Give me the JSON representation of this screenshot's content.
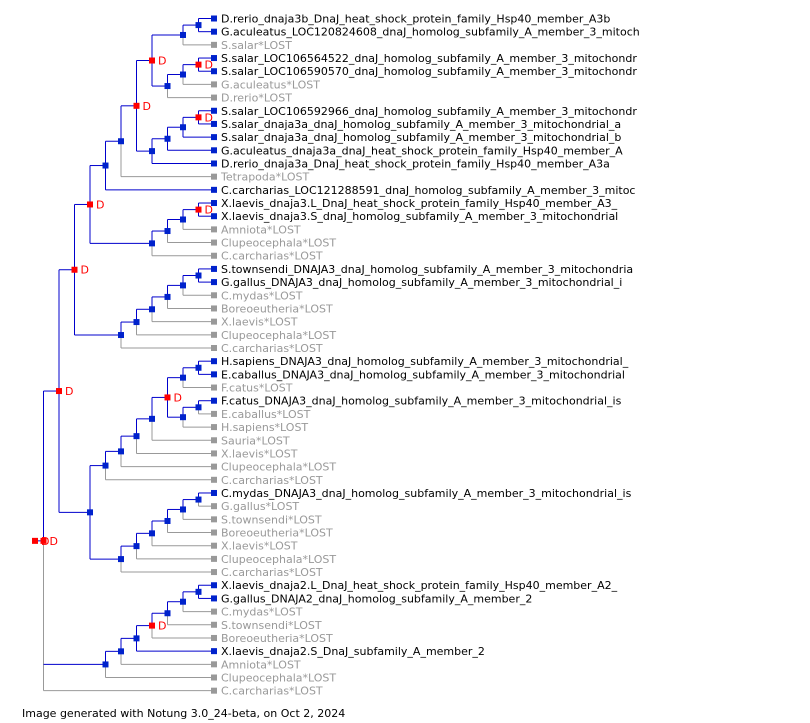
{
  "footer": "Image generated with Notung 3.0_24-beta, on Oct 2, 2024",
  "colors": {
    "branch_present": "#0000cc",
    "branch_lost": "#999999",
    "node_speciation": "#0022cc",
    "node_duplication": "#ff0000",
    "text_present": "#000000",
    "text_lost": "#999999",
    "duplication_label": "#ff0000"
  },
  "duplication_marker": "D",
  "tree": {
    "children": [
      {
        "dup": true,
        "children": [
          {
            "dup": true,
            "children": [
              {
                "dup": true,
                "children": [
                  {
                    "dup": true,
                    "children": [
                      {
                        "children": [
                          {
                            "children": [
                              {
                                "dup": true,
                                "children": [
                                  {
                                    "dup": true,
                                    "children": [
                                      {
                                        "children": [
                                          {
                                            "children": [
                                              {
                                                "label": "D.rerio_dnaja3b_DnaJ_heat_shock_protein_family_Hsp40_member_A3b"
                                              },
                                              {
                                                "label": "G.aculeatus_LOC120824608_dnaJ_homolog_subfamily_A_member_3_mitoch"
                                              }
                                            ]
                                          },
                                          {
                                            "label": "S.salar*LOST",
                                            "lost": true
                                          }
                                        ]
                                      },
                                      {
                                        "children": [
                                          {
                                            "children": [
                                              {
                                                "dup": true,
                                                "children": [
                                                  {
                                                    "label": "S.salar_LOC106564522_dnaJ_homolog_subfamily_A_member_3_mitochondr"
                                                  },
                                                  {
                                                    "label": "S.salar_LOC106590570_dnaJ_homolog_subfamily_A_member_3_mitochondr"
                                                  }
                                                ]
                                              },
                                              {
                                                "label": "G.aculeatus*LOST",
                                                "lost": true
                                              }
                                            ]
                                          },
                                          {
                                            "label": "D.rerio*LOST",
                                            "lost": true
                                          }
                                        ]
                                      }
                                    ]
                                  },
                                  {
                                    "children": [
                                      {
                                        "children": [
                                          {
                                            "children": [
                                              {
                                                "dup": true,
                                                "children": [
                                                  {
                                                    "label": "S.salar_LOC106592966_dnaJ_homolog_subfamily_A_member_3_mitochondr"
                                                  },
                                                  {
                                                    "label": "S.salar_dnaja3a_dnaJ_homolog_subfamily_A_member_3_mitochondrial_a"
                                                  }
                                                ]
                                              },
                                              {
                                                "label": "S.salar_dnaja3a_dnaJ_homolog_subfamily_A_member_3_mitochondrial_b"
                                              }
                                            ]
                                          },
                                          {
                                            "label": "G.aculeatus_dnaja3a_dnaJ_heat_shock_protein_family_Hsp40_member_A"
                                          }
                                        ]
                                      },
                                      {
                                        "label": "D.rerio_dnaja3a_DnaJ_heat_shock_protein_family_Hsp40_member_A3a"
                                      }
                                    ]
                                  }
                                ]
                              },
                              {
                                "label": "Tetrapoda*LOST",
                                "lost": true
                              }
                            ]
                          },
                          {
                            "label": "C.carcharias_LOC121288591_dnaJ_homolog_subfamily_A_member_3_mitoc"
                          }
                        ]
                      },
                      {
                        "children": [
                          {
                            "children": [
                              {
                                "children": [
                                  {
                                    "dup": true,
                                    "children": [
                                      {
                                        "label": "X.laevis_dnaja3.L_DnaJ_heat_shock_protein_family_Hsp40_member_A3_"
                                      },
                                      {
                                        "label": "X.laevis_dnaja3.S_dnaJ_homolog_subfamily_A_member_3_mitochondrial"
                                      }
                                    ]
                                  },
                                  {
                                    "label": "Amniota*LOST",
                                    "lost": true
                                  }
                                ]
                              },
                              {
                                "label": "Clupeocephala*LOST",
                                "lost": true
                              }
                            ]
                          },
                          {
                            "label": "C.carcharias*LOST",
                            "lost": true
                          }
                        ]
                      }
                    ]
                  },
                  {
                    "children": [
                      {
                        "children": [
                          {
                            "children": [
                              {
                                "children": [
                                  {
                                    "children": [
                                      {
                                        "children": [
                                          {
                                            "label": "S.townsendi_DNAJA3_dnaJ_homolog_subfamily_A_member_3_mitochondria"
                                          },
                                          {
                                            "label": "G.gallus_DNAJA3_dnaJ_homolog_subfamily_A_member_3_mitochondrial_i"
                                          }
                                        ]
                                      },
                                      {
                                        "label": "C.mydas*LOST",
                                        "lost": true
                                      }
                                    ]
                                  },
                                  {
                                    "label": "Boreoeutheria*LOST",
                                    "lost": true
                                  }
                                ]
                              },
                              {
                                "label": "X.laevis*LOST",
                                "lost": true
                              }
                            ]
                          },
                          {
                            "label": "Clupeocephala*LOST",
                            "lost": true
                          }
                        ]
                      },
                      {
                        "label": "C.carcharias*LOST",
                        "lost": true
                      }
                    ]
                  }
                ]
              },
              {
                "children": [
                  {
                    "children": [
                      {
                        "children": [
                          {
                            "children": [
                              {
                                "children": [
                                  {
                                    "dup": true,
                                    "children": [
                                      {
                                        "children": [
                                          {
                                            "children": [
                                              {
                                                "label": "H.sapiens_DNAJA3_dnaJ_homolog_subfamily_A_member_3_mitochondrial_"
                                              },
                                              {
                                                "label": "E.caballus_DNAJA3_dnaJ_homolog_subfamily_A_member_3_mitochondrial"
                                              }
                                            ]
                                          },
                                          {
                                            "label": "F.catus*LOST",
                                            "lost": true
                                          }
                                        ]
                                      },
                                      {
                                        "children": [
                                          {
                                            "children": [
                                              {
                                                "label": "F.catus_DNAJA3_dnaJ_homolog_subfamily_A_member_3_mitochondrial_is"
                                              },
                                              {
                                                "label": "E.caballus*LOST",
                                                "lost": true
                                              }
                                            ]
                                          },
                                          {
                                            "label": "H.sapiens*LOST",
                                            "lost": true
                                          }
                                        ]
                                      }
                                    ]
                                  },
                                  {
                                    "label": "Sauria*LOST",
                                    "lost": true
                                  }
                                ]
                              },
                              {
                                "label": "X.laevis*LOST",
                                "lost": true
                              }
                            ]
                          },
                          {
                            "label": "Clupeocephala*LOST",
                            "lost": true
                          }
                        ]
                      },
                      {
                        "label": "C.carcharias*LOST",
                        "lost": true
                      }
                    ]
                  },
                  {
                    "children": [
                      {
                        "children": [
                          {
                            "children": [
                              {
                                "children": [
                                  {
                                    "children": [
                                      {
                                        "children": [
                                          {
                                            "label": "C.mydas_DNAJA3_dnaJ_homolog_subfamily_A_member_3_mitochondrial_is"
                                          },
                                          {
                                            "label": "G.gallus*LOST",
                                            "lost": true
                                          }
                                        ]
                                      },
                                      {
                                        "label": "S.townsendi*LOST",
                                        "lost": true
                                      }
                                    ]
                                  },
                                  {
                                    "label": "Boreoeutheria*LOST",
                                    "lost": true
                                  }
                                ]
                              },
                              {
                                "label": "X.laevis*LOST",
                                "lost": true
                              }
                            ]
                          },
                          {
                            "label": "Clupeocephala*LOST",
                            "lost": true
                          }
                        ]
                      },
                      {
                        "label": "C.carcharias*LOST",
                        "lost": true
                      }
                    ]
                  }
                ]
              }
            ]
          },
          {
            "children": [
              {
                "children": [
                  {
                    "children": [
                      {
                        "dup": true,
                        "children": [
                          {
                            "children": [
                              {
                                "children": [
                                  {
                                    "children": [
                                      {
                                        "label": "X.laevis_dnaja2.L_DnaJ_heat_shock_protein_family_Hsp40_member_A2_"
                                      },
                                      {
                                        "label": "G.gallus_DNAJA2_dnaJ_homolog_subfamily_A_member_2"
                                      }
                                    ]
                                  },
                                  {
                                    "label": "C.mydas*LOST",
                                    "lost": true
                                  }
                                ]
                              },
                              {
                                "label": "S.townsendi*LOST",
                                "lost": true
                              }
                            ]
                          },
                          {
                            "label": "Boreoeutheria*LOST",
                            "lost": true
                          }
                        ]
                      },
                      {
                        "label": "X.laevis_dnaja2.S_DnaJ_subfamily_A_member_2"
                      }
                    ]
                  },
                  {
                    "label": "Amniota*LOST",
                    "lost": true
                  }
                ]
              },
              {
                "label": "Clupeocephala*LOST",
                "lost": true
              }
            ]
          },
          {
            "label": "C.carcharias*LOST",
            "lost": true
          }
        ]
      }
    ],
    "dup": true
  }
}
